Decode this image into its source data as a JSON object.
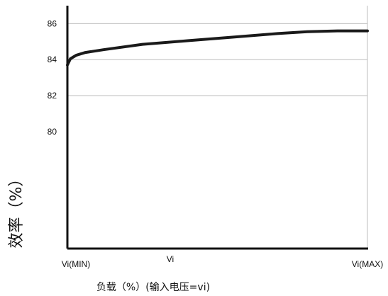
{
  "chart_data": {
    "type": "line",
    "xlabel": "负载（%）(输入电压=vi)",
    "ylabel": "效率（%）",
    "x_ticks": [
      "Vi(MIN)",
      "Vi",
      "Vi(MAX)"
    ],
    "y_ticks": [
      80,
      82,
      84,
      86
    ],
    "ylim": [
      73.5,
      87
    ],
    "xlim": [
      0,
      1
    ],
    "grid": true,
    "series": [
      {
        "x": [
          0,
          0.01,
          0.03,
          0.06,
          0.12,
          0.25,
          0.4,
          0.55,
          0.7,
          0.8,
          0.9,
          1.0
        ],
        "y": [
          83.7,
          84.05,
          84.25,
          84.4,
          84.55,
          84.85,
          85.05,
          85.25,
          85.45,
          85.55,
          85.6,
          85.6
        ]
      }
    ]
  }
}
